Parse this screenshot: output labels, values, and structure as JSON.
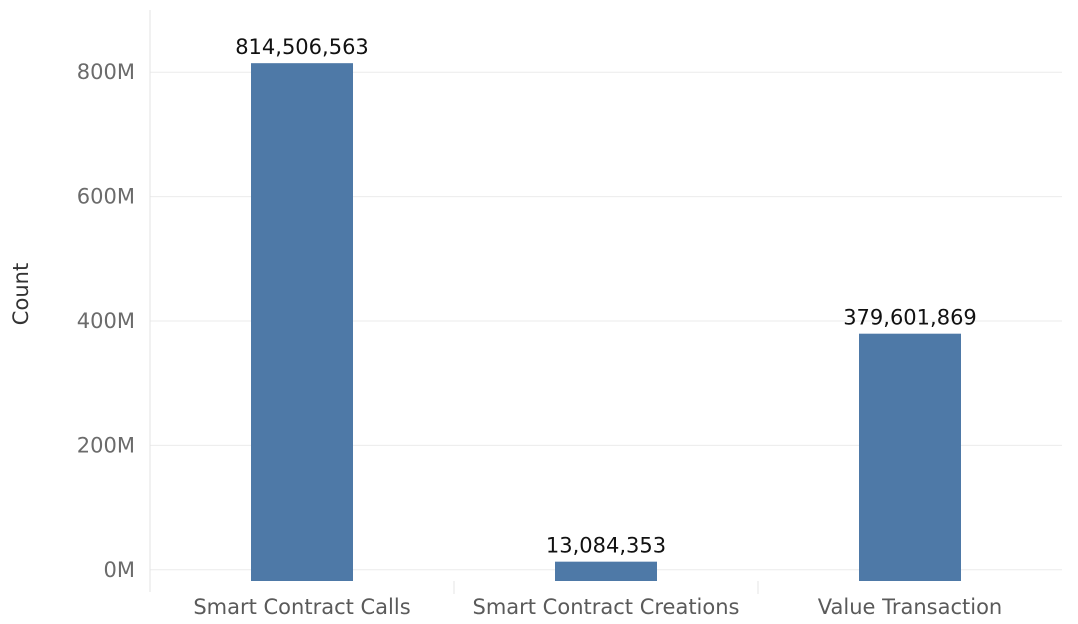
{
  "chart_data": {
    "type": "bar",
    "title": "",
    "xlabel": "",
    "ylabel": "Count",
    "categories": [
      "Smart Contract Calls",
      "Smart Contract Creations",
      "Value Transaction"
    ],
    "values": [
      814506563,
      13084353,
      379601869
    ],
    "value_labels": [
      "814,506,563",
      "13,084,353",
      "379,601,869"
    ],
    "yticks": [
      0,
      200000000,
      400000000,
      600000000,
      800000000
    ],
    "ytick_labels": [
      "0M",
      "200M",
      "400M",
      "600M",
      "800M"
    ],
    "ylim": [
      -18000000,
      900000000
    ],
    "grid": true,
    "legend": "none",
    "bar_color": "#4e79a7"
  }
}
